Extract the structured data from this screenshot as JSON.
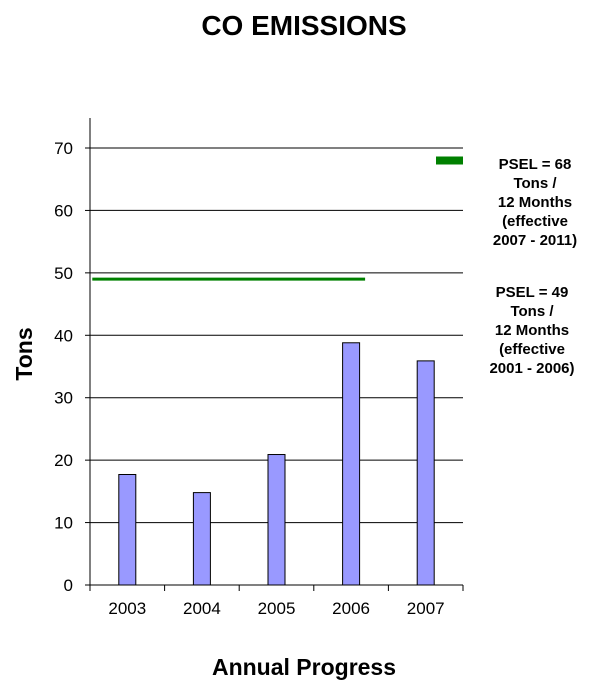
{
  "chart_data": {
    "type": "bar",
    "title": "CO EMISSIONS",
    "xlabel": "Annual Progress",
    "ylabel": "Tons",
    "categories": [
      "2003",
      "2004",
      "2005",
      "2006",
      "2007"
    ],
    "values": [
      17.7,
      14.8,
      20.9,
      38.8,
      35.9
    ],
    "ylim": [
      0,
      70
    ],
    "yticks": [
      "0",
      "10",
      "20",
      "30",
      "40",
      "50",
      "60",
      "70"
    ],
    "grid": true,
    "bar_color": "#9999FF",
    "limits": [
      {
        "value": 49,
        "from": "2003",
        "to": "2006",
        "color": "#008000",
        "lines": [
          "PSEL = 49",
          "Tons /",
          "12 Months",
          "(effective",
          "2001 - 2006)"
        ]
      },
      {
        "value": 68,
        "from": "2007",
        "to": "2007",
        "color": "#008000",
        "lines": [
          "PSEL = 68",
          "Tons /",
          "12 Months",
          "(effective",
          "2007 - 2011)"
        ]
      }
    ]
  }
}
